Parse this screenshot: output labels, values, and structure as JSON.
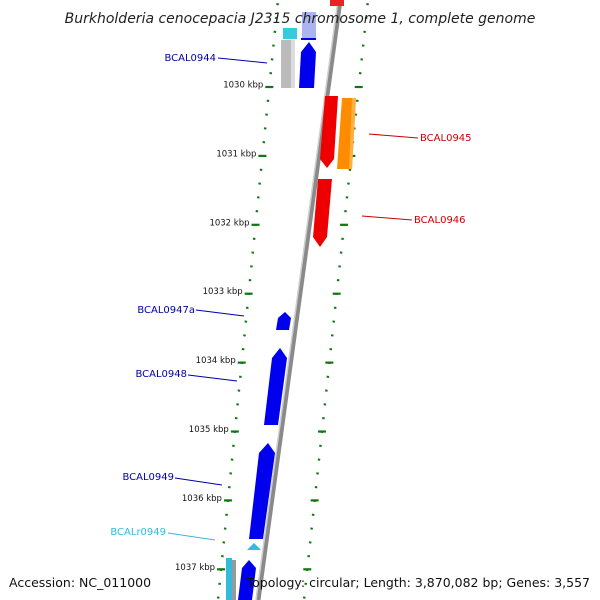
{
  "title": "Burkholderia cenocepacia J2315 chromosome 1, complete genome",
  "footer": {
    "accession": "Accession: NC_011000",
    "summary": "Topology: circular; Length: 3,870,082 bp; Genes: 3,557"
  },
  "colors": {
    "forward_gene": "#0000ee",
    "reverse_gene": "#ee0000",
    "orange_feature": "#ff8c00",
    "rna_feature": "#33bbdd",
    "pseudo_feature": "#bbbbbb",
    "tick_green": "#117711",
    "label_forward": "#0000aa",
    "label_reverse": "#cc0000",
    "label_rna": "#33bbdd"
  },
  "ticks": [
    {
      "label": "1030 kbp",
      "kbp": 1030
    },
    {
      "label": "1031 kbp",
      "kbp": 1031
    },
    {
      "label": "1032 kbp",
      "kbp": 1032
    },
    {
      "label": "1033 kbp",
      "kbp": 1033
    },
    {
      "label": "1034 kbp",
      "kbp": 1034
    },
    {
      "label": "1035 kbp",
      "kbp": 1035
    },
    {
      "label": "1036 kbp",
      "kbp": 1036
    },
    {
      "label": "1037 kbp",
      "kbp": 1037
    }
  ],
  "genes": [
    {
      "label": "BCAL0944",
      "strand": "forward",
      "type": "gene"
    },
    {
      "label": "BCAL0945",
      "strand": "reverse",
      "type": "gene"
    },
    {
      "label": "BCAL0946",
      "strand": "reverse",
      "type": "gene"
    },
    {
      "label": "BCAL0947a",
      "strand": "forward",
      "type": "gene"
    },
    {
      "label": "BCAL0948",
      "strand": "forward",
      "type": "gene"
    },
    {
      "label": "BCAL0949",
      "strand": "forward",
      "type": "gene"
    },
    {
      "label": "BCALr0949",
      "strand": "forward",
      "type": "rna"
    }
  ]
}
